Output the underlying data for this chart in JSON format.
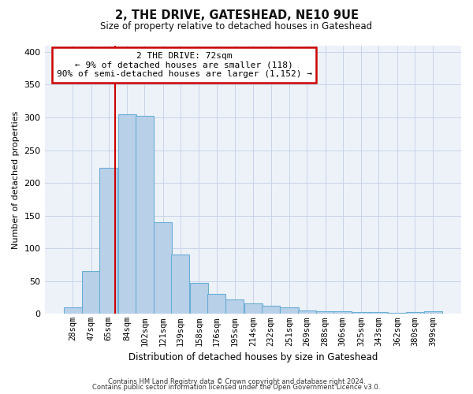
{
  "title": "2, THE DRIVE, GATESHEAD, NE10 9UE",
  "subtitle": "Size of property relative to detached houses in Gateshead",
  "xlabel": "Distribution of detached houses by size in Gateshead",
  "ylabel": "Number of detached properties",
  "bar_labels": [
    "28sqm",
    "47sqm",
    "65sqm",
    "84sqm",
    "102sqm",
    "121sqm",
    "139sqm",
    "158sqm",
    "176sqm",
    "195sqm",
    "214sqm",
    "232sqm",
    "251sqm",
    "269sqm",
    "288sqm",
    "306sqm",
    "325sqm",
    "343sqm",
    "362sqm",
    "380sqm",
    "399sqm"
  ],
  "bar_values": [
    10,
    65,
    223,
    305,
    302,
    140,
    91,
    47,
    31,
    22,
    16,
    13,
    10,
    5,
    4,
    4,
    3,
    3,
    2,
    3,
    4
  ],
  "bar_color": "#b8d0e8",
  "bar_edge_color": "#6baed6",
  "ylim": [
    0,
    410
  ],
  "yticks": [
    0,
    50,
    100,
    150,
    200,
    250,
    300,
    350,
    400
  ],
  "property_line_color": "#cc0000",
  "annotation_text": "2 THE DRIVE: 72sqm\n← 9% of detached houses are smaller (118)\n90% of semi-detached houses are larger (1,152) →",
  "annotation_box_edge_color": "#cc0000",
  "footer_line1": "Contains HM Land Registry data © Crown copyright and database right 2024.",
  "footer_line2": "Contains public sector information licensed under the Open Government Licence v3.0.",
  "bin_width": 19,
  "background_color": "#edf2f9",
  "grid_color": "#c8d4e8"
}
